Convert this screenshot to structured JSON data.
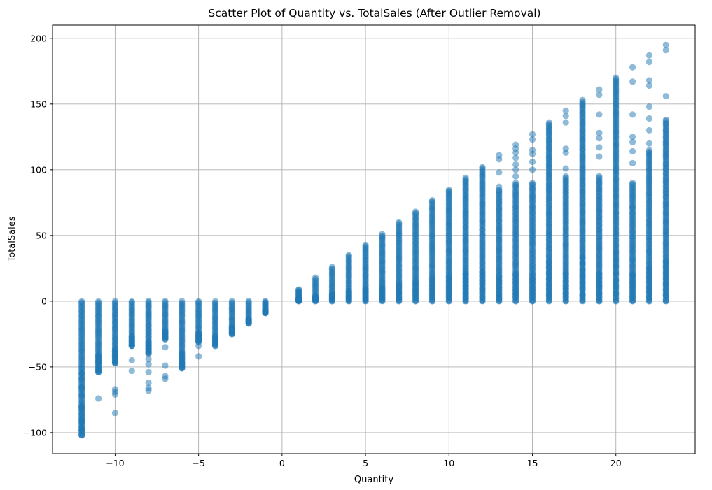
{
  "chart_data": {
    "type": "scatter",
    "title": "Scatter Plot of Quantity vs. TotalSales (After Outlier Removal)",
    "xlabel": "Quantity",
    "ylabel": "TotalSales",
    "xlim": [
      -13.75,
      24.75
    ],
    "ylim": [
      -116,
      210
    ],
    "xticks": [
      -10,
      -5,
      0,
      5,
      10,
      15,
      20
    ],
    "xtick_labels": [
      "−10",
      "−5",
      "0",
      "5",
      "10",
      "15",
      "20"
    ],
    "yticks": [
      -100,
      -50,
      0,
      50,
      100,
      150,
      200
    ],
    "ytick_labels": [
      "−100",
      "−50",
      "0",
      "50",
      "100",
      "150",
      "200"
    ],
    "grid": true,
    "marker_color": "#1f77b4",
    "marker_alpha": 0.5,
    "columns": [
      {
        "x": -12,
        "y_min": -102,
        "y_max": 0,
        "outliers": [
          -102,
          -98,
          -91,
          -81,
          -72,
          -66,
          -65,
          -59,
          -55
        ]
      },
      {
        "x": -11,
        "y_min": -54,
        "y_max": 0,
        "outliers": [
          -74,
          -54,
          -46,
          -41
        ]
      },
      {
        "x": -10,
        "y_min": -47,
        "y_max": 0,
        "outliers": [
          -85,
          -71,
          -69,
          -67,
          -47,
          -42
        ]
      },
      {
        "x": -9,
        "y_min": -34,
        "y_max": 0,
        "outliers": [
          -53,
          -45,
          -34
        ]
      },
      {
        "x": -8,
        "y_min": -40,
        "y_max": 0,
        "outliers": [
          -68,
          -66,
          -62,
          -54,
          -48,
          -44
        ]
      },
      {
        "x": -7,
        "y_min": -29,
        "y_max": 0,
        "outliers": [
          -59,
          -57,
          -49,
          -35
        ]
      },
      {
        "x": -6,
        "y_min": -51,
        "y_max": 0,
        "outliers": [
          -51,
          -49,
          -47
        ]
      },
      {
        "x": -5,
        "y_min": -31,
        "y_max": 0,
        "outliers": [
          -42,
          -34
        ]
      },
      {
        "x": -4,
        "y_min": -34,
        "y_max": 0,
        "outliers": []
      },
      {
        "x": -3,
        "y_min": -25,
        "y_max": 0,
        "outliers": []
      },
      {
        "x": -2,
        "y_min": -17,
        "y_max": 0,
        "outliers": []
      },
      {
        "x": -1,
        "y_min": -9,
        "y_max": 0,
        "outliers": []
      },
      {
        "x": 1,
        "y_min": 0,
        "y_max": 9,
        "outliers": []
      },
      {
        "x": 2,
        "y_min": 0,
        "y_max": 18,
        "outliers": []
      },
      {
        "x": 3,
        "y_min": 0,
        "y_max": 26,
        "outliers": []
      },
      {
        "x": 4,
        "y_min": 0,
        "y_max": 35,
        "outliers": []
      },
      {
        "x": 5,
        "y_min": 0,
        "y_max": 43,
        "outliers": []
      },
      {
        "x": 6,
        "y_min": 0,
        "y_max": 51,
        "outliers": []
      },
      {
        "x": 7,
        "y_min": 0,
        "y_max": 60,
        "outliers": []
      },
      {
        "x": 8,
        "y_min": 0,
        "y_max": 68,
        "outliers": []
      },
      {
        "x": 9,
        "y_min": 0,
        "y_max": 77,
        "outliers": []
      },
      {
        "x": 10,
        "y_min": 0,
        "y_max": 85,
        "outliers": []
      },
      {
        "x": 11,
        "y_min": 0,
        "y_max": 94,
        "outliers": []
      },
      {
        "x": 12,
        "y_min": 0,
        "y_max": 102,
        "outliers": []
      },
      {
        "x": 13,
        "y_min": 0,
        "y_max": 85,
        "outliers": [
          111,
          108,
          98,
          87
        ]
      },
      {
        "x": 14,
        "y_min": 0,
        "y_max": 90,
        "outliers": [
          119,
          116,
          113,
          109,
          104,
          100,
          95
        ]
      },
      {
        "x": 15,
        "y_min": 0,
        "y_max": 90,
        "outliers": [
          127,
          123,
          115,
          112,
          106,
          100
        ]
      },
      {
        "x": 16,
        "y_min": 0,
        "y_max": 136,
        "outliers": []
      },
      {
        "x": 17,
        "y_min": 0,
        "y_max": 95,
        "outliers": [
          145,
          141,
          136,
          116,
          113,
          101
        ]
      },
      {
        "x": 18,
        "y_min": 0,
        "y_max": 153,
        "outliers": []
      },
      {
        "x": 19,
        "y_min": 0,
        "y_max": 95,
        "outliers": [
          161,
          157,
          142,
          128,
          124,
          117,
          110
        ]
      },
      {
        "x": 20,
        "y_min": 0,
        "y_max": 170,
        "outliers": []
      },
      {
        "x": 21,
        "y_min": 0,
        "y_max": 90,
        "outliers": [
          178,
          167,
          142,
          125,
          121,
          114,
          105
        ]
      },
      {
        "x": 22,
        "y_min": 0,
        "y_max": 115,
        "outliers": [
          187,
          182,
          168,
          164,
          148,
          139,
          130,
          120
        ]
      },
      {
        "x": 23,
        "y_min": 0,
        "y_max": 138,
        "outliers": [
          195,
          191,
          156
        ]
      }
    ]
  }
}
